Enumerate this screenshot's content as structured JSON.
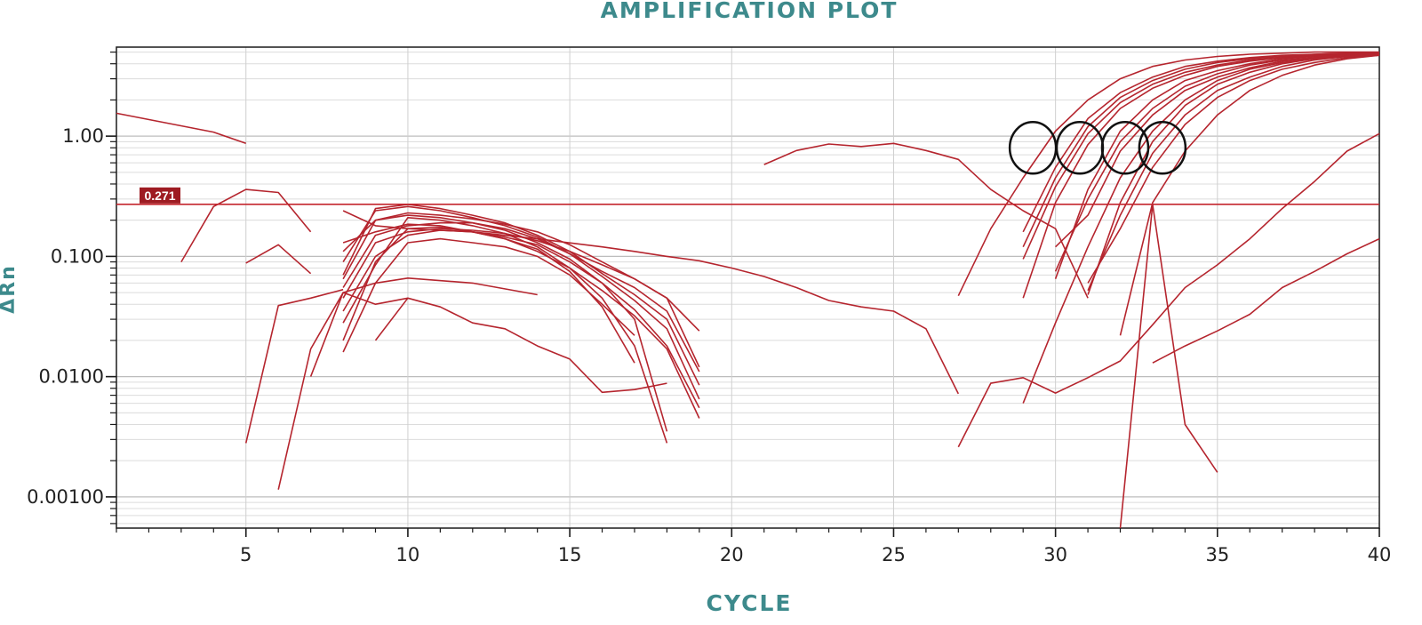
{
  "chart_data": {
    "type": "line",
    "title": "AMPLIFICATION PLOT",
    "xlabel": "CYCLE",
    "ylabel": "ΔRn",
    "xlim": [
      1,
      40
    ],
    "ylim": [
      0.00055,
      5.5
    ],
    "yscale": "log",
    "x_ticks": [
      5,
      10,
      15,
      20,
      25,
      30,
      35,
      40
    ],
    "y_ticks": [
      {
        "value": 0.001,
        "label": "0.00100"
      },
      {
        "value": 0.01,
        "label": "0.0100"
      },
      {
        "value": 0.1,
        "label": "0.100"
      },
      {
        "value": 1,
        "label": "1.00"
      }
    ],
    "grid": true,
    "threshold": {
      "value": 0.271,
      "label": "0.271"
    },
    "line_color": "#b5252e",
    "threshold_color": "#c4262e",
    "title_color": "#3d8a8c",
    "annotations": [
      {
        "type": "circle",
        "x": 29.3,
        "y": 0.8
      },
      {
        "type": "circle",
        "x": 30.75,
        "y": 0.8
      },
      {
        "type": "circle",
        "x": 32.15,
        "y": 0.8
      },
      {
        "type": "circle",
        "x": 33.3,
        "y": 0.8
      }
    ],
    "series": [
      {
        "x": [
          1,
          4,
          5
        ],
        "y": [
          1.55,
          1.08,
          0.87
        ]
      },
      {
        "x": [
          3,
          4,
          5,
          6,
          7
        ],
        "y": [
          0.09,
          0.26,
          0.36,
          0.34,
          0.16
        ]
      },
      {
        "x": [
          5,
          6,
          7
        ],
        "y": [
          0.088,
          0.125,
          0.072
        ]
      },
      {
        "x": [
          5,
          6,
          7,
          8
        ],
        "y": [
          0.0028,
          0.039,
          0.045,
          0.053
        ]
      },
      {
        "x": [
          6,
          7,
          8,
          9,
          10
        ],
        "y": [
          0.00115,
          0.017,
          0.05,
          0.04,
          0.045
        ]
      },
      {
        "x": [
          7,
          8,
          9,
          10,
          12,
          14
        ],
        "y": [
          0.01,
          0.05,
          0.06,
          0.066,
          0.06,
          0.048
        ]
      },
      {
        "x": [
          8,
          9,
          10,
          11,
          12,
          13,
          14,
          15,
          16,
          17,
          18,
          19
        ],
        "y": [
          0.13,
          0.16,
          0.185,
          0.18,
          0.16,
          0.14,
          0.11,
          0.08,
          0.052,
          0.032,
          0.017,
          0.0045
        ]
      },
      {
        "x": [
          8,
          9,
          10,
          11,
          12,
          13,
          14,
          15,
          16,
          17,
          18,
          19
        ],
        "y": [
          0.11,
          0.2,
          0.22,
          0.21,
          0.19,
          0.165,
          0.13,
          0.095,
          0.06,
          0.036,
          0.018,
          0.0055
        ]
      },
      {
        "x": [
          8,
          9,
          10,
          11,
          12,
          13,
          14,
          15,
          16,
          17,
          18,
          19
        ],
        "y": [
          0.09,
          0.24,
          0.26,
          0.24,
          0.21,
          0.18,
          0.145,
          0.105,
          0.068,
          0.043,
          0.025,
          0.0065
        ]
      },
      {
        "x": [
          8,
          9,
          10,
          11,
          12,
          13,
          14,
          15,
          16,
          17,
          18,
          19
        ],
        "y": [
          0.07,
          0.25,
          0.27,
          0.25,
          0.22,
          0.19,
          0.15,
          0.11,
          0.072,
          0.048,
          0.03,
          0.0085
        ]
      },
      {
        "x": [
          8,
          9,
          10,
          11,
          12,
          13,
          14,
          15,
          16,
          17,
          18,
          19
        ],
        "y": [
          0.055,
          0.15,
          0.18,
          0.19,
          0.19,
          0.17,
          0.14,
          0.105,
          0.075,
          0.055,
          0.035,
          0.011
        ]
      },
      {
        "x": [
          8,
          9,
          10,
          11,
          12,
          13,
          14,
          15,
          16,
          17,
          18,
          19
        ],
        "y": [
          0.045,
          0.13,
          0.16,
          0.17,
          0.165,
          0.155,
          0.135,
          0.11,
          0.085,
          0.065,
          0.045,
          0.012
        ]
      },
      {
        "x": [
          8,
          9,
          10,
          11,
          12,
          13,
          14,
          15,
          16,
          17,
          18
        ],
        "y": [
          0.035,
          0.1,
          0.15,
          0.165,
          0.16,
          0.145,
          0.125,
          0.09,
          0.06,
          0.03,
          0.0035
        ]
      },
      {
        "x": [
          8,
          9,
          10,
          11,
          12,
          13,
          14,
          15,
          16,
          17,
          18
        ],
        "y": [
          0.028,
          0.085,
          0.21,
          0.2,
          0.18,
          0.155,
          0.12,
          0.08,
          0.045,
          0.018,
          0.0028
        ]
      },
      {
        "x": [
          8,
          9,
          10,
          11,
          12,
          13,
          14,
          15,
          16,
          17
        ],
        "y": [
          0.02,
          0.09,
          0.17,
          0.175,
          0.16,
          0.14,
          0.115,
          0.075,
          0.038,
          0.013
        ]
      },
      {
        "x": [
          8,
          9,
          10,
          11,
          12,
          13,
          14,
          15,
          16,
          17
        ],
        "y": [
          0.016,
          0.06,
          0.13,
          0.14,
          0.13,
          0.12,
          0.1,
          0.07,
          0.04,
          0.022
        ]
      },
      {
        "x": [
          8,
          9,
          10,
          11,
          12,
          13,
          14,
          15,
          16,
          17,
          18,
          19
        ],
        "y": [
          0.065,
          0.2,
          0.23,
          0.22,
          0.205,
          0.185,
          0.16,
          0.125,
          0.09,
          0.065,
          0.045,
          0.024
        ]
      },
      {
        "x": [
          8,
          9,
          10,
          12,
          14,
          16,
          17,
          18,
          19,
          20,
          21,
          22,
          23,
          24,
          25,
          26,
          27
        ],
        "y": [
          0.24,
          0.18,
          0.17,
          0.16,
          0.14,
          0.12,
          0.11,
          0.1,
          0.092,
          0.08,
          0.068,
          0.055,
          0.043,
          0.038,
          0.035,
          0.025,
          0.0072
        ]
      },
      {
        "x": [
          9,
          10,
          11,
          12,
          13,
          14,
          15,
          16,
          17,
          18
        ],
        "y": [
          0.02,
          0.045,
          0.038,
          0.028,
          0.025,
          0.018,
          0.014,
          0.0074,
          0.0078,
          0.0088
        ]
      },
      {
        "x": [
          21,
          22,
          23,
          24,
          25,
          26,
          27,
          28,
          29,
          30,
          31
        ],
        "y": [
          0.58,
          0.76,
          0.86,
          0.82,
          0.87,
          0.76,
          0.64,
          0.36,
          0.24,
          0.17,
          0.045
        ]
      },
      {
        "x": [
          27,
          28,
          29,
          30,
          31,
          32,
          33,
          34,
          35,
          36,
          37,
          38,
          39,
          40
        ],
        "y": [
          0.047,
          0.17,
          0.45,
          1.1,
          2.0,
          3.0,
          3.8,
          4.3,
          4.6,
          4.8,
          4.9,
          5.0,
          5.0,
          5.0
        ]
      },
      {
        "x": [
          29,
          30,
          31,
          32,
          33,
          34,
          35,
          36,
          37,
          38,
          39,
          40
        ],
        "y": [
          0.16,
          0.55,
          1.4,
          2.3,
          3.1,
          3.8,
          4.2,
          4.5,
          4.7,
          4.8,
          4.9,
          4.9
        ]
      },
      {
        "x": [
          29,
          30,
          31,
          32,
          33,
          34,
          35,
          36,
          37,
          38,
          39,
          40
        ],
        "y": [
          0.12,
          0.45,
          1.2,
          2.1,
          2.9,
          3.6,
          4.1,
          4.4,
          4.6,
          4.8,
          4.9,
          4.9
        ]
      },
      {
        "x": [
          29,
          30,
          31,
          32,
          33,
          34,
          35,
          36,
          37,
          38,
          39,
          40
        ],
        "y": [
          0.095,
          0.38,
          1.05,
          1.9,
          2.7,
          3.4,
          3.9,
          4.3,
          4.5,
          4.7,
          4.8,
          4.9
        ]
      },
      {
        "x": [
          29,
          30,
          31,
          32,
          33,
          34,
          35,
          36,
          37,
          38,
          39,
          40
        ],
        "y": [
          0.045,
          0.28,
          0.85,
          1.7,
          2.5,
          3.2,
          3.8,
          4.2,
          4.5,
          4.7,
          4.8,
          4.9
        ]
      },
      {
        "x": [
          30,
          31,
          32,
          33,
          34,
          35,
          36,
          37,
          38,
          39,
          40
        ],
        "y": [
          0.065,
          0.36,
          1.1,
          2.0,
          2.9,
          3.5,
          4.0,
          4.4,
          4.6,
          4.8,
          4.9
        ]
      },
      {
        "x": [
          30,
          31,
          32,
          33,
          34,
          35,
          36,
          37,
          38,
          39,
          40
        ],
        "y": [
          0.075,
          0.3,
          0.9,
          1.7,
          2.6,
          3.3,
          3.9,
          4.3,
          4.5,
          4.7,
          4.8
        ]
      },
      {
        "x": [
          30,
          31,
          32,
          33,
          34,
          35,
          36,
          37,
          38,
          39,
          40
        ],
        "y": [
          0.12,
          0.22,
          0.75,
          1.5,
          2.4,
          3.1,
          3.7,
          4.2,
          4.5,
          4.7,
          4.8
        ]
      },
      {
        "x": [
          31,
          32,
          33,
          34,
          35,
          36,
          37,
          38,
          39,
          40
        ],
        "y": [
          0.048,
          0.28,
          0.9,
          1.8,
          2.7,
          3.4,
          4.0,
          4.4,
          4.6,
          4.8
        ]
      },
      {
        "x": [
          31,
          32,
          33,
          34,
          35,
          36,
          37,
          38,
          39,
          40
        ],
        "y": [
          0.052,
          0.22,
          0.72,
          1.5,
          2.4,
          3.1,
          3.8,
          4.3,
          4.6,
          4.8
        ]
      },
      {
        "x": [
          31,
          32,
          33,
          34,
          35,
          36,
          37,
          38,
          39,
          40
        ],
        "y": [
          0.06,
          0.17,
          0.55,
          1.25,
          2.1,
          2.9,
          3.6,
          4.1,
          4.5,
          4.7
        ]
      },
      {
        "x": [
          32,
          33,
          34,
          35,
          36,
          37,
          38,
          39,
          40
        ],
        "y": [
          0.022,
          0.28,
          0.75,
          1.5,
          2.4,
          3.2,
          3.9,
          4.4,
          4.7
        ]
      },
      {
        "x": [
          29,
          30,
          31,
          32,
          33,
          34,
          35,
          36,
          37,
          38,
          39,
          40
        ],
        "y": [
          0.006,
          0.028,
          0.12,
          0.45,
          1.1,
          2.0,
          2.9,
          3.6,
          4.1,
          4.4,
          4.6,
          4.8
        ]
      },
      {
        "x": [
          27,
          28,
          29,
          30,
          31,
          32,
          33,
          34,
          35,
          36,
          37,
          38,
          39,
          40
        ],
        "y": [
          0.0026,
          0.0088,
          0.0098,
          0.0073,
          0.0098,
          0.0135,
          0.027,
          0.055,
          0.085,
          0.14,
          0.25,
          0.42,
          0.75,
          1.05
        ]
      },
      {
        "x": [
          32,
          33,
          34,
          35
        ],
        "y": [
          0.00055,
          0.27,
          0.004,
          0.0016
        ]
      },
      {
        "x": [
          33,
          34,
          35,
          36,
          37,
          38,
          39,
          40
        ],
        "y": [
          0.013,
          0.018,
          0.024,
          0.033,
          0.055,
          0.075,
          0.105,
          0.14
        ]
      }
    ]
  }
}
